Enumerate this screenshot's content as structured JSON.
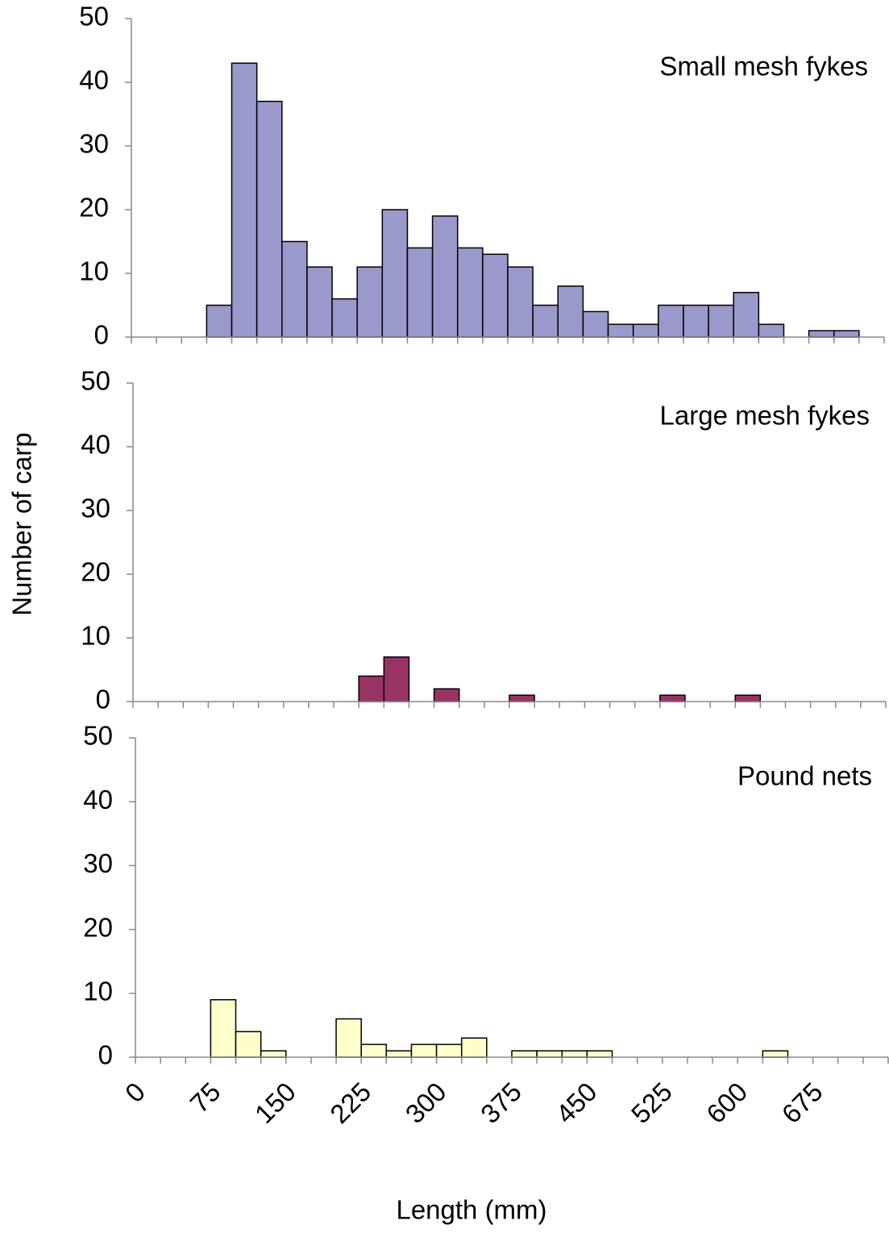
{
  "chart_data": [
    {
      "type": "histogram",
      "title": "Small mesh fykes",
      "color": "#9999cc",
      "bins": [
        0,
        25,
        50,
        75,
        100,
        125,
        150,
        175,
        200,
        225,
        250,
        275,
        300,
        325,
        350,
        375,
        400,
        425,
        450,
        475,
        500,
        525,
        550,
        575,
        600,
        625,
        650,
        675,
        700,
        725,
        750
      ],
      "values": [
        0,
        0,
        0,
        5,
        43,
        37,
        15,
        11,
        6,
        11,
        20,
        14,
        19,
        14,
        13,
        11,
        5,
        8,
        4,
        2,
        2,
        5,
        5,
        5,
        7,
        2,
        0,
        1,
        1,
        0
      ],
      "xlim": [
        0,
        750
      ],
      "ylim": [
        0,
        50
      ],
      "yticks": [
        0,
        10,
        20,
        30,
        40,
        50
      ]
    },
    {
      "type": "histogram",
      "title": "Large mesh fykes",
      "color": "#993366",
      "ylabel": "Number of carp",
      "bins": [
        0,
        25,
        50,
        75,
        100,
        125,
        150,
        175,
        200,
        225,
        250,
        275,
        300,
        325,
        350,
        375,
        400,
        425,
        450,
        475,
        500,
        525,
        550,
        575,
        600,
        625,
        650,
        675,
        700,
        725,
        750
      ],
      "values": [
        0,
        0,
        0,
        0,
        0,
        0,
        0,
        0,
        0,
        4,
        7,
        0,
        2,
        0,
        0,
        1,
        0,
        0,
        0,
        0,
        0,
        1,
        0,
        0,
        1,
        0,
        0,
        0,
        0,
        0
      ],
      "xlim": [
        0,
        750
      ],
      "ylim": [
        0,
        50
      ],
      "yticks": [
        0,
        10,
        20,
        30,
        40,
        50
      ]
    },
    {
      "type": "histogram",
      "title": "Pound nets",
      "color": "#ffffcc",
      "xlabel": "Length (mm)",
      "bins": [
        0,
        25,
        50,
        75,
        100,
        125,
        150,
        175,
        200,
        225,
        250,
        275,
        300,
        325,
        350,
        375,
        400,
        425,
        450,
        475,
        500,
        525,
        550,
        575,
        600,
        625,
        650,
        675,
        700,
        725,
        750
      ],
      "values": [
        0,
        0,
        0,
        9,
        4,
        1,
        0,
        0,
        6,
        2,
        1,
        2,
        2,
        3,
        0,
        1,
        1,
        1,
        1,
        0,
        0,
        0,
        0,
        0,
        0,
        1,
        0,
        0,
        0,
        0
      ],
      "xlim": [
        0,
        750
      ],
      "ylim": [
        0,
        50
      ],
      "yticks": [
        0,
        10,
        20,
        30,
        40,
        50
      ],
      "xticks": [
        0,
        75,
        150,
        225,
        300,
        375,
        450,
        525,
        600,
        675
      ]
    }
  ]
}
